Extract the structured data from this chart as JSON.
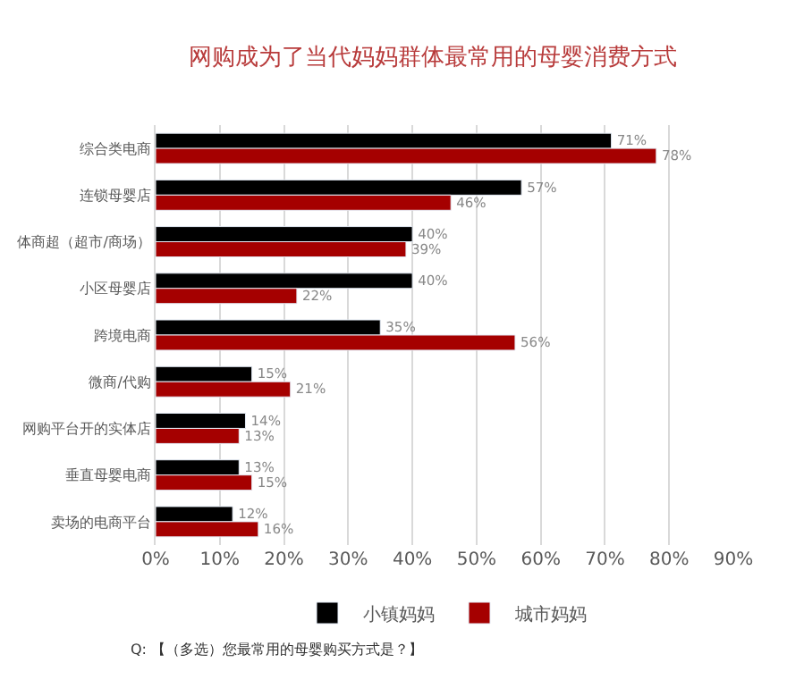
{
  "chart_data": {
    "type": "bar",
    "orientation": "horizontal",
    "title": "网购成为了当代妈妈群体最常用的母婴消费方式",
    "categories": [
      "综合类电商",
      "连锁母婴店",
      "体商超（超市/商场）",
      "小区母婴店",
      "跨境电商",
      "微商/代购",
      "网购平台开的实体店",
      "垂直母婴电商",
      "卖场的电商平台"
    ],
    "series": [
      {
        "name": "小镇妈妈",
        "color": "#000000",
        "values": [
          71,
          57,
          40,
          40,
          35,
          15,
          14,
          13,
          12
        ],
        "value_labels": [
          "71%",
          "57%",
          "40%",
          "40%",
          "35%",
          "15%",
          "14%",
          "13%",
          "12%"
        ]
      },
      {
        "name": "城市妈妈",
        "color": "#a50000",
        "values": [
          78,
          46,
          39,
          22,
          56,
          21,
          13,
          15,
          16
        ],
        "value_labels": [
          "78%",
          "46%",
          "39%",
          "22%",
          "56%",
          "21%",
          "13%",
          "15%",
          "16%"
        ]
      }
    ],
    "xlim": [
      0,
      90
    ],
    "xticks": [
      {
        "value": 0,
        "label": "0%"
      },
      {
        "value": 10,
        "label": "10%"
      },
      {
        "value": 20,
        "label": "20%"
      },
      {
        "value": 30,
        "label": "30%"
      },
      {
        "value": 40,
        "label": "40%"
      },
      {
        "value": 50,
        "label": "50%"
      },
      {
        "value": 60,
        "label": "60%"
      },
      {
        "value": 70,
        "label": "70%"
      },
      {
        "value": 80,
        "label": "80%"
      },
      {
        "value": 90,
        "label": "90%"
      }
    ],
    "grid": "x",
    "legend": "bottom",
    "annotations": [
      "Q: 【（多选）您最常用的母婴购买方式是？】"
    ]
  }
}
